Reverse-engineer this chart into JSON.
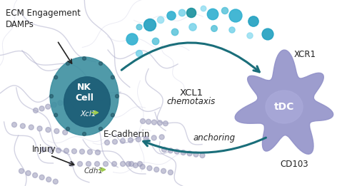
{
  "bg_color": "#ffffff",
  "ecm_color": "#b0b0cc",
  "ecm_light_color": "#c8c8e0",
  "ecm_dot_color": "#9898b8",
  "nk_cell_outer_color": "#3d8fa0",
  "nk_cell_inner_color": "#1e5f78",
  "nk_label": "NK\nCell",
  "xcl1_gene_label": "Xcl1",
  "cdh1_gene_label": "Cdh1",
  "dc_body_color": "#9090c8",
  "dc_nucleus_color": "#a8a8d8",
  "dc_label": "tDC",
  "xcr1_label": "XCR1",
  "cd103_label": "CD103",
  "xcl1_label": "XCL1",
  "chemotaxis_label": "chemotaxis",
  "anchoring_label": "anchoring",
  "ecadherin_label": "E-Cadherin",
  "injury_label": "Injury",
  "ecm_engagement_label": "ECM Engagement\nDAMPs",
  "arrow_color": "#1a6e7a",
  "dot_colors_large": [
    "#20a0c0",
    "#30b0d0",
    "#18909c"
  ],
  "dot_colors_small": [
    "#70d0e8",
    "#90ddf0",
    "#50c0d8"
  ],
  "gene_arrow_color": "#a0cc50",
  "text_color": "#222222"
}
